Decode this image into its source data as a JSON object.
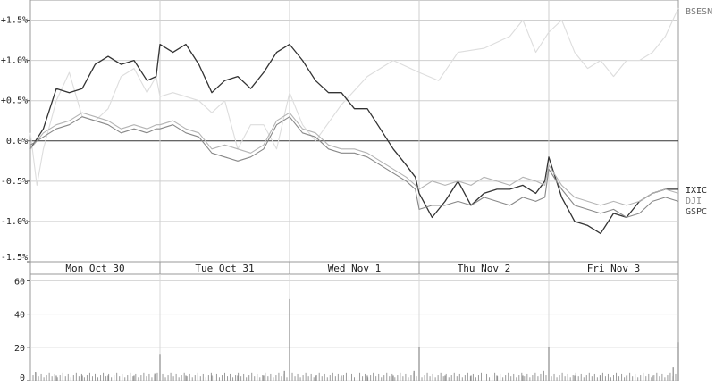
{
  "chart_data": [
    {
      "type": "line",
      "title": "",
      "xlabel": "",
      "ylabel": "",
      "y_tick_labels": [
        "+1.5%",
        "+1.0%",
        "+0.5%",
        "0.0%",
        "-0.5%",
        "-1.0%",
        "-1.5%"
      ],
      "y_ticks": [
        1.5,
        1.0,
        0.5,
        0.0,
        -0.5,
        -1.0,
        -1.5
      ],
      "ylim": [
        -1.5,
        1.75
      ],
      "x_unit": "trading day",
      "xlim": [
        0,
        5
      ],
      "categories": [
        "Mon Oct 30",
        "Tue Oct 31",
        "Wed Nov  1",
        "Thu Nov  2",
        "Fri Nov  3"
      ],
      "grid": true,
      "legend_position": "right",
      "series": [
        {
          "name": "BSESN",
          "color": "#dddddd",
          "x": [
            0.0,
            0.05,
            0.1,
            0.2,
            0.3,
            0.4,
            0.5,
            0.6,
            0.7,
            0.8,
            0.9,
            0.97,
            1.0,
            1.1,
            1.2,
            1.3,
            1.4,
            1.5,
            1.6,
            1.7,
            1.8,
            1.9,
            2.0,
            2.1,
            2.2,
            2.4,
            2.6,
            2.8,
            3.0,
            3.15,
            3.3,
            3.5,
            3.7,
            3.8,
            3.9,
            4.0,
            4.1,
            4.2,
            4.3,
            4.4,
            4.5,
            4.6,
            4.7,
            4.8,
            4.9,
            5.0
          ],
          "values": [
            0.1,
            -0.55,
            -0.1,
            0.5,
            0.85,
            0.3,
            0.25,
            0.4,
            0.8,
            0.9,
            0.6,
            0.8,
            0.55,
            0.6,
            0.55,
            0.5,
            0.35,
            0.5,
            -0.1,
            0.2,
            0.2,
            -0.1,
            0.6,
            0.2,
            0.0,
            0.45,
            0.8,
            1.0,
            0.85,
            0.75,
            1.1,
            1.15,
            1.3,
            1.5,
            1.1,
            1.35,
            1.5,
            1.1,
            0.9,
            1.0,
            0.8,
            1.0,
            1.0,
            1.1,
            1.3,
            1.65
          ]
        },
        {
          "name": "IXIC",
          "color": "#333333",
          "x": [
            0.0,
            0.1,
            0.2,
            0.3,
            0.4,
            0.5,
            0.6,
            0.7,
            0.8,
            0.9,
            0.97,
            1.0,
            1.1,
            1.2,
            1.3,
            1.4,
            1.5,
            1.6,
            1.7,
            1.8,
            1.9,
            2.0,
            2.1,
            2.2,
            2.3,
            2.4,
            2.5,
            2.6,
            2.7,
            2.8,
            2.9,
            2.97,
            3.0,
            3.1,
            3.2,
            3.3,
            3.4,
            3.5,
            3.6,
            3.7,
            3.8,
            3.9,
            3.97,
            4.0,
            4.1,
            4.2,
            4.3,
            4.4,
            4.5,
            4.6,
            4.7,
            4.8,
            4.9,
            5.0
          ],
          "values": [
            -0.1,
            0.15,
            0.65,
            0.6,
            0.65,
            0.95,
            1.05,
            0.95,
            1.0,
            0.75,
            0.8,
            1.2,
            1.1,
            1.2,
            0.95,
            0.6,
            0.75,
            0.8,
            0.65,
            0.85,
            1.1,
            1.2,
            1.0,
            0.75,
            0.6,
            0.6,
            0.4,
            0.4,
            0.15,
            -0.1,
            -0.3,
            -0.45,
            -0.65,
            -0.95,
            -0.75,
            -0.5,
            -0.8,
            -0.65,
            -0.6,
            -0.6,
            -0.55,
            -0.65,
            -0.5,
            -0.2,
            -0.7,
            -1.0,
            -1.05,
            -1.15,
            -0.9,
            -0.95,
            -0.75,
            -0.65,
            -0.6,
            -0.6
          ]
        },
        {
          "name": "DJI",
          "color": "#b4b4b4",
          "x": [
            0.0,
            0.1,
            0.2,
            0.3,
            0.4,
            0.5,
            0.6,
            0.7,
            0.8,
            0.9,
            0.97,
            1.0,
            1.1,
            1.2,
            1.3,
            1.4,
            1.5,
            1.6,
            1.7,
            1.8,
            1.9,
            2.0,
            2.1,
            2.2,
            2.3,
            2.4,
            2.5,
            2.6,
            2.7,
            2.8,
            2.9,
            2.97,
            3.0,
            3.1,
            3.2,
            3.3,
            3.4,
            3.5,
            3.6,
            3.7,
            3.8,
            3.9,
            3.97,
            4.0,
            4.1,
            4.2,
            4.3,
            4.4,
            4.5,
            4.6,
            4.7,
            4.8,
            4.9,
            5.0
          ],
          "values": [
            -0.1,
            0.1,
            0.2,
            0.25,
            0.35,
            0.3,
            0.25,
            0.15,
            0.2,
            0.15,
            0.2,
            0.2,
            0.25,
            0.15,
            0.1,
            -0.1,
            -0.05,
            -0.1,
            -0.15,
            -0.05,
            0.25,
            0.35,
            0.15,
            0.1,
            -0.05,
            -0.1,
            -0.1,
            -0.15,
            -0.25,
            -0.35,
            -0.45,
            -0.55,
            -0.6,
            -0.5,
            -0.55,
            -0.5,
            -0.55,
            -0.45,
            -0.5,
            -0.55,
            -0.45,
            -0.5,
            -0.55,
            -0.3,
            -0.55,
            -0.7,
            -0.75,
            -0.8,
            -0.75,
            -0.8,
            -0.75,
            -0.65,
            -0.6,
            -0.65
          ]
        },
        {
          "name": "GSPC",
          "color": "#888888",
          "x": [
            0.0,
            0.1,
            0.2,
            0.3,
            0.4,
            0.5,
            0.6,
            0.7,
            0.8,
            0.9,
            0.97,
            1.0,
            1.1,
            1.2,
            1.3,
            1.4,
            1.5,
            1.6,
            1.7,
            1.8,
            1.9,
            2.0,
            2.1,
            2.2,
            2.3,
            2.4,
            2.5,
            2.6,
            2.7,
            2.8,
            2.9,
            2.97,
            3.0,
            3.1,
            3.2,
            3.3,
            3.4,
            3.5,
            3.6,
            3.7,
            3.8,
            3.9,
            3.97,
            4.0,
            4.1,
            4.2,
            4.3,
            4.4,
            4.5,
            4.6,
            4.7,
            4.8,
            4.9,
            5.0
          ],
          "values": [
            -0.05,
            0.05,
            0.15,
            0.2,
            0.3,
            0.25,
            0.2,
            0.1,
            0.15,
            0.1,
            0.15,
            0.15,
            0.2,
            0.1,
            0.05,
            -0.15,
            -0.2,
            -0.25,
            -0.2,
            -0.1,
            0.2,
            0.3,
            0.1,
            0.05,
            -0.1,
            -0.15,
            -0.15,
            -0.2,
            -0.3,
            -0.4,
            -0.5,
            -0.6,
            -0.85,
            -0.8,
            -0.8,
            -0.75,
            -0.8,
            -0.7,
            -0.75,
            -0.8,
            -0.7,
            -0.75,
            -0.7,
            -0.35,
            -0.6,
            -0.8,
            -0.85,
            -0.9,
            -0.85,
            -0.95,
            -0.9,
            -0.75,
            -0.7,
            -0.75
          ]
        }
      ],
      "legend": [
        "BSESN",
        "IXIC",
        "DJI",
        "GSPC"
      ]
    },
    {
      "type": "bar",
      "title": "",
      "xlabel": "",
      "ylabel": "",
      "y_tick_labels": [
        "60",
        "40",
        "20",
        "0"
      ],
      "y_ticks": [
        60,
        40,
        20,
        0
      ],
      "ylim": [
        0,
        64
      ],
      "x_unit": "trading day",
      "xlim": [
        0,
        5
      ],
      "x": [
        0.04,
        0.2,
        0.4,
        0.6,
        0.8,
        0.96,
        1.0,
        1.2,
        1.4,
        1.6,
        1.8,
        1.96,
        2.0,
        2.2,
        2.4,
        2.6,
        2.8,
        2.96,
        3.0,
        3.2,
        3.4,
        3.6,
        3.8,
        3.96,
        4.0,
        4.2,
        4.4,
        4.6,
        4.8,
        4.96,
        5.0
      ],
      "values": [
        5,
        3,
        3,
        3,
        3,
        4,
        16,
        3,
        3,
        3,
        3,
        6,
        49,
        3,
        3,
        3,
        3,
        6,
        20,
        3,
        3,
        3,
        3,
        6,
        20,
        3,
        3,
        3,
        3,
        8,
        23
      ],
      "grid": true
    }
  ]
}
